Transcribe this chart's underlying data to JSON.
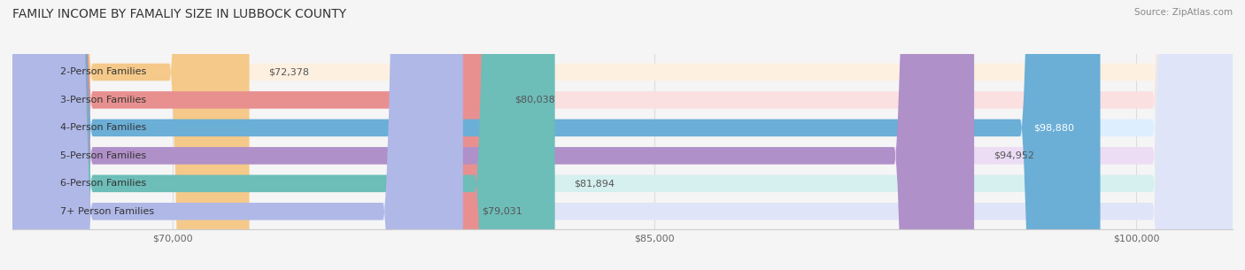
{
  "title": "FAMILY INCOME BY FAMALIY SIZE IN LUBBOCK COUNTY",
  "source": "Source: ZipAtlas.com",
  "categories": [
    "2-Person Families",
    "3-Person Families",
    "4-Person Families",
    "5-Person Families",
    "6-Person Families",
    "7+ Person Families"
  ],
  "values": [
    72378,
    80038,
    98880,
    94952,
    81894,
    79031
  ],
  "bar_colors": [
    "#f5c98a",
    "#e89090",
    "#6baed6",
    "#b090c8",
    "#6dbdb8",
    "#b0b8e8"
  ],
  "bar_bg_colors": [
    "#fdf0e0",
    "#fae0e0",
    "#ddeeff",
    "#ecddf5",
    "#d5f0ee",
    "#e0e4f8"
  ],
  "xmin": 65000,
  "xmax": 103000,
  "xticks": [
    70000,
    85000,
    100000
  ],
  "xtick_labels": [
    "$70,000",
    "$85,000",
    "$100,000"
  ],
  "title_fontsize": 10,
  "label_fontsize": 8,
  "value_fontsize": 8,
  "background_color": "#f5f5f5"
}
